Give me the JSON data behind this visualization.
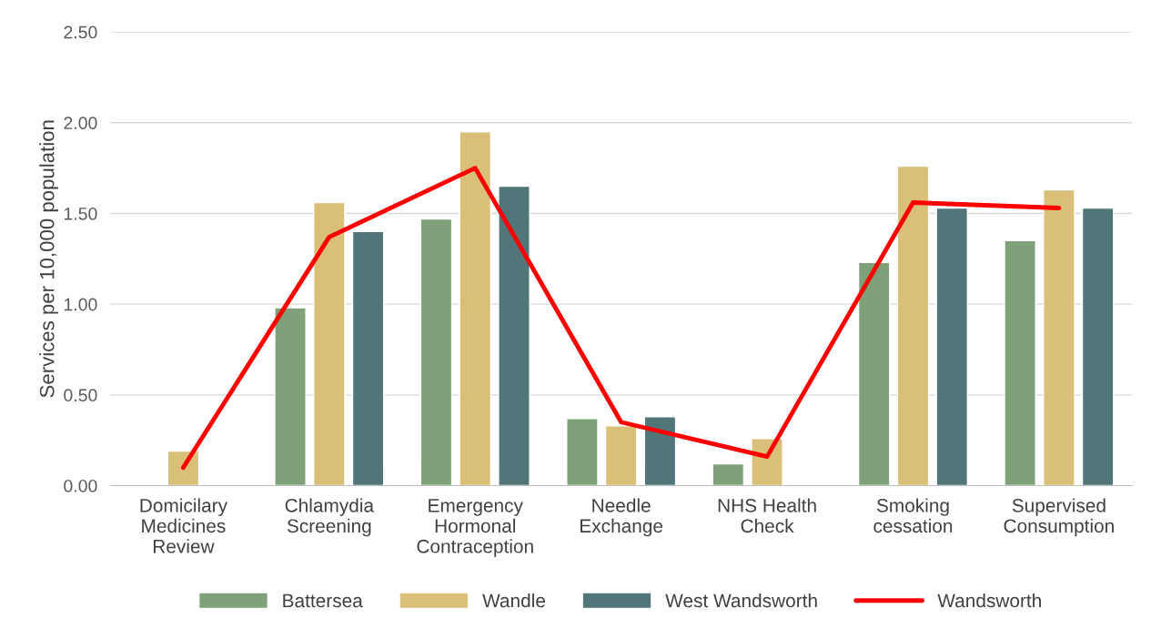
{
  "chart_data": {
    "type": "bar",
    "ylabel": "Services per 10,000 population",
    "categories": [
      "Domicilary\nMedicines\nReview",
      "Chlamydia\nScreening",
      "Emergency\nHormonal\nContraception",
      "Needle\nExchange",
      "NHS Health\nCheck",
      "Smoking\ncessation",
      "Supervised\nConsumption"
    ],
    "series": [
      {
        "name": "Battersea",
        "color": "#7ea17a",
        "values": [
          null,
          0.98,
          1.47,
          0.37,
          0.12,
          1.23,
          1.35
        ]
      },
      {
        "name": "Wandle",
        "color": "#d9bf78",
        "values": [
          0.19,
          1.56,
          1.95,
          0.33,
          0.26,
          1.76,
          1.63
        ]
      },
      {
        "name": "West Wandsworth",
        "color": "#507679",
        "values": [
          null,
          1.4,
          1.65,
          0.38,
          null,
          1.53,
          1.53
        ]
      },
      {
        "name": "Wandsworth",
        "color": "#ff0000",
        "type": "line",
        "values": [
          0.1,
          1.37,
          1.75,
          0.35,
          0.16,
          1.56,
          1.53
        ]
      }
    ],
    "ylim": [
      0,
      2.5
    ],
    "yticks": [
      {
        "value": 0,
        "label": "0.00"
      },
      {
        "value": 0.5,
        "label": "0.50"
      },
      {
        "value": 1,
        "label": "1.00"
      },
      {
        "value": 1.5,
        "label": "1.50"
      },
      {
        "value": 2,
        "label": "2.00"
      },
      {
        "value": 2.5,
        "label": "2.50"
      }
    ],
    "grid": "y",
    "legend": "bottom"
  }
}
